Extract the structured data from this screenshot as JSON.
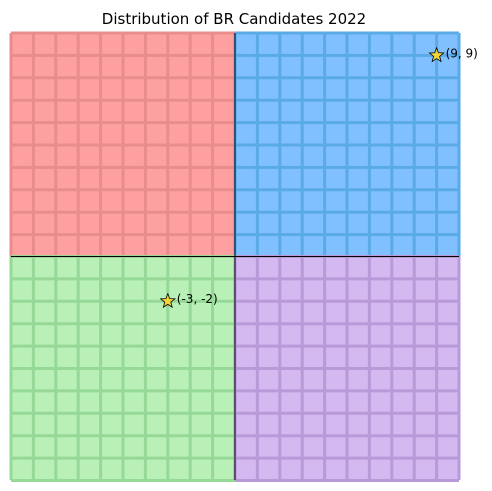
{
  "chart_data": {
    "type": "scatter",
    "title": "Distribution of BR Candidates 2022",
    "xlabel": "",
    "ylabel": "",
    "xlim": [
      -10,
      10
    ],
    "ylim": [
      -10,
      10
    ],
    "grid": true,
    "quadrants": [
      {
        "name": "top-left",
        "fill": "#ffa0a0",
        "grid": "#e88c8c"
      },
      {
        "name": "top-right",
        "fill": "#80c0ff",
        "grid": "#5aaae6"
      },
      {
        "name": "bottom-left",
        "fill": "#b8f0b8",
        "grid": "#96d896"
      },
      {
        "name": "bottom-right",
        "fill": "#d4b8f0",
        "grid": "#b89ad8"
      }
    ],
    "points": [
      {
        "x": 9,
        "y": 9,
        "label": "(9, 9)"
      },
      {
        "x": -3,
        "y": -2,
        "label": "(-3, -2)"
      }
    ],
    "marker": {
      "shape": "star",
      "fill": "#f2d33a",
      "stroke": "#000000"
    }
  }
}
